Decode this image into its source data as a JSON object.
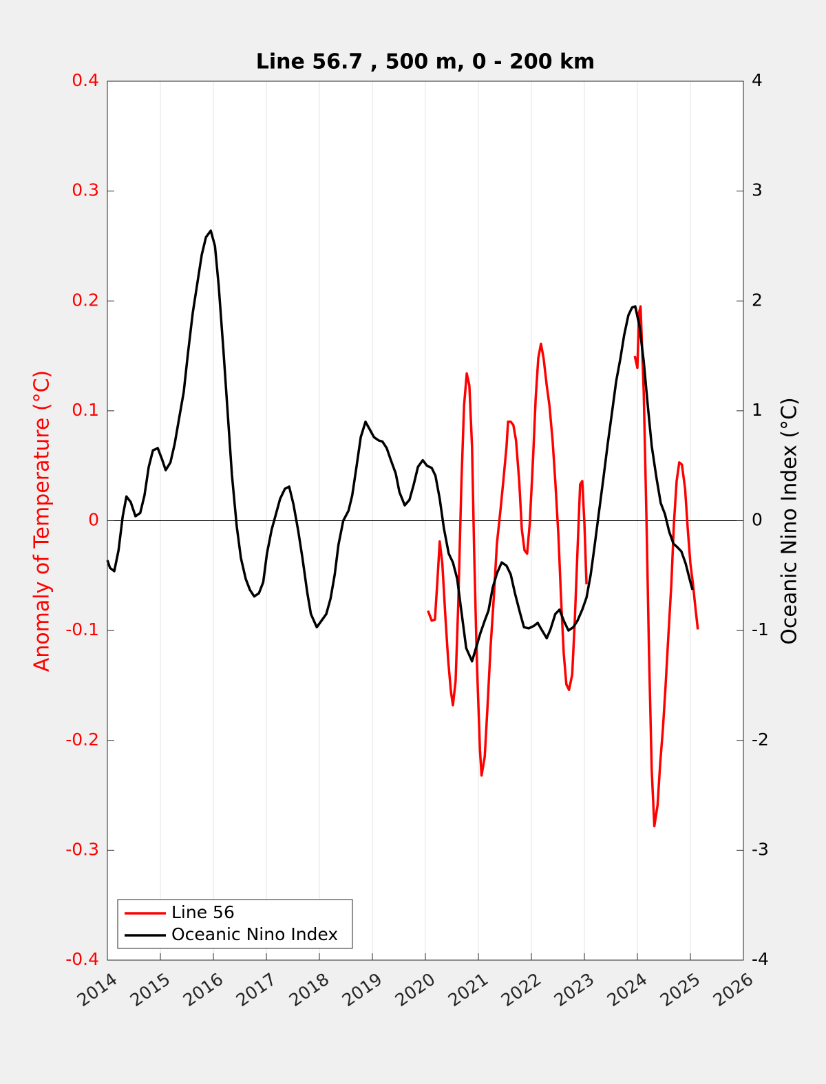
{
  "chart_data": {
    "type": "line",
    "title": "Line 56.7 , 500 m, 0 - 200 km",
    "y_label": "Anomaly of Temperature (°C)",
    "y2_label": "Oceanic Nino Index (°C)",
    "xlim": [
      2014,
      2026
    ],
    "xticks": [
      2014,
      2015,
      2016,
      2017,
      2018,
      2019,
      2020,
      2021,
      2022,
      2023,
      2024,
      2025,
      2026
    ],
    "ylim": [
      -0.4,
      0.4
    ],
    "yticks": [
      -0.4,
      -0.3,
      -0.2,
      -0.1,
      0,
      0.1,
      0.2,
      0.3,
      0.4
    ],
    "y2lim": [
      -4,
      4
    ],
    "y2ticks": [
      -4,
      -3,
      -2,
      -1,
      0,
      1,
      2,
      3,
      4
    ],
    "grid": true,
    "zero_line": true,
    "legend": "lower left",
    "y_color": "#ff0000",
    "y2_color": "#000000",
    "series": [
      {
        "name": "Line 56",
        "color": "#ff0000",
        "axis": "y",
        "x": [
          2020.05,
          2020.12,
          2020.18,
          2020.23,
          2020.27,
          2020.32,
          2020.38,
          2020.43,
          2020.48,
          2020.52,
          2020.57,
          2020.62,
          2020.68,
          2020.73,
          2020.78,
          2020.83,
          2020.88,
          2020.92,
          2020.97,
          2021.03,
          2021.06,
          2021.12,
          2021.17,
          2021.23,
          2021.29,
          2021.35,
          2021.42,
          2021.47,
          2021.53,
          2021.56,
          2021.61,
          2021.66,
          2021.71,
          2021.77,
          2021.82,
          2021.87,
          2021.92,
          2021.97,
          2022.03,
          2022.08,
          2022.13,
          2022.18,
          2022.23,
          2022.29,
          2022.34,
          2022.4,
          2022.45,
          2022.51,
          2022.56,
          2022.61,
          2022.66,
          2022.71,
          2022.77,
          2022.82,
          2022.87,
          2022.92,
          2022.96,
          2023.0,
          2023.04,
          2023.5,
          2023.95,
          2024.0,
          2024.03,
          2024.06,
          2024.12,
          2024.17,
          2024.22,
          2024.27,
          2024.32,
          2024.38,
          2024.43,
          2024.48,
          2024.53,
          2024.58,
          2024.64,
          2024.69,
          2024.74,
          2024.79,
          2024.84,
          2024.9,
          2024.95,
          2025.0,
          2025.05,
          2025.09,
          2025.14
        ],
        "values": [
          -0.082,
          -0.091,
          -0.09,
          -0.052,
          -0.019,
          -0.039,
          -0.09,
          -0.127,
          -0.155,
          -0.168,
          -0.146,
          -0.077,
          0.036,
          0.105,
          0.134,
          0.123,
          0.067,
          -0.027,
          -0.127,
          -0.209,
          -0.232,
          -0.215,
          -0.171,
          -0.115,
          -0.071,
          -0.021,
          0.011,
          0.036,
          0.067,
          0.09,
          0.09,
          0.087,
          0.073,
          0.036,
          -0.008,
          -0.027,
          -0.03,
          -0.002,
          0.055,
          0.111,
          0.148,
          0.161,
          0.148,
          0.123,
          0.105,
          0.073,
          0.036,
          -0.014,
          -0.071,
          -0.121,
          -0.149,
          -0.154,
          -0.14,
          -0.09,
          -0.027,
          0.033,
          0.036,
          -0.002,
          -0.058,
          null,
          0.15,
          0.139,
          0.189,
          0.195,
          0.117,
          0.004,
          -0.121,
          -0.227,
          -0.278,
          -0.259,
          -0.221,
          -0.19,
          -0.152,
          -0.108,
          -0.058,
          -0.002,
          0.036,
          0.053,
          0.051,
          0.029,
          -0.008,
          -0.039,
          -0.058,
          -0.077,
          -0.099
        ]
      },
      {
        "name": "Oceanic Nino Index",
        "color": "#000000",
        "axis": "y2",
        "x": [
          2014.0,
          2014.05,
          2014.13,
          2014.21,
          2014.29,
          2014.36,
          2014.44,
          2014.53,
          2014.62,
          2014.7,
          2014.78,
          2014.86,
          2014.95,
          2015.03,
          2015.1,
          2015.19,
          2015.27,
          2015.35,
          2015.44,
          2015.52,
          2015.61,
          2015.7,
          2015.78,
          2015.86,
          2015.95,
          2016.03,
          2016.1,
          2016.19,
          2016.27,
          2016.35,
          2016.44,
          2016.52,
          2016.61,
          2016.69,
          2016.77,
          2016.86,
          2016.94,
          2017.01,
          2017.1,
          2017.18,
          2017.26,
          2017.35,
          2017.43,
          2017.51,
          2017.6,
          2017.68,
          2017.77,
          2017.84,
          2017.95,
          2018.04,
          2018.13,
          2018.21,
          2018.29,
          2018.36,
          2018.45,
          2018.55,
          2018.62,
          2018.7,
          2018.78,
          2018.87,
          2018.95,
          2019.03,
          2019.12,
          2019.19,
          2019.27,
          2019.35,
          2019.44,
          2019.51,
          2019.61,
          2019.7,
          2019.78,
          2019.86,
          2019.95,
          2020.03,
          2020.12,
          2020.19,
          2020.27,
          2020.35,
          2020.44,
          2020.52,
          2020.6,
          2020.68,
          2020.77,
          2020.88,
          2020.96,
          2021.04,
          2021.12,
          2021.19,
          2021.27,
          2021.35,
          2021.44,
          2021.53,
          2021.61,
          2021.69,
          2021.78,
          2021.86,
          2021.95,
          2022.04,
          2022.12,
          2022.19,
          2022.29,
          2022.36,
          2022.45,
          2022.53,
          2022.62,
          2022.7,
          2022.79,
          2022.87,
          2022.96,
          2023.04,
          2023.12,
          2023.19,
          2023.27,
          2023.36,
          2023.44,
          2023.52,
          2023.6,
          2023.68,
          2023.75,
          2023.83,
          2023.9,
          2023.96,
          2024.04,
          2024.12,
          2024.19,
          2024.27,
          2024.36,
          2024.44,
          2024.52,
          2024.6,
          2024.68,
          2024.75,
          2024.83,
          2024.91,
          2024.99,
          2025.04
        ],
        "values": [
          -0.36,
          -0.43,
          -0.46,
          -0.27,
          0.04,
          0.22,
          0.17,
          0.04,
          0.07,
          0.23,
          0.49,
          0.64,
          0.66,
          0.56,
          0.46,
          0.53,
          0.7,
          0.92,
          1.17,
          1.52,
          1.89,
          2.17,
          2.42,
          2.58,
          2.64,
          2.5,
          2.14,
          1.55,
          0.98,
          0.42,
          -0.05,
          -0.34,
          -0.53,
          -0.63,
          -0.69,
          -0.66,
          -0.56,
          -0.3,
          -0.08,
          0.06,
          0.2,
          0.29,
          0.31,
          0.15,
          -0.09,
          -0.34,
          -0.65,
          -0.85,
          -0.97,
          -0.91,
          -0.85,
          -0.71,
          -0.49,
          -0.22,
          0.0,
          0.09,
          0.23,
          0.49,
          0.76,
          0.9,
          0.83,
          0.76,
          0.73,
          0.72,
          0.66,
          0.55,
          0.43,
          0.26,
          0.14,
          0.19,
          0.33,
          0.49,
          0.55,
          0.5,
          0.48,
          0.41,
          0.2,
          -0.07,
          -0.3,
          -0.38,
          -0.53,
          -0.83,
          -1.16,
          -1.28,
          -1.15,
          -1.02,
          -0.91,
          -0.82,
          -0.61,
          -0.48,
          -0.38,
          -0.41,
          -0.49,
          -0.66,
          -0.83,
          -0.97,
          -0.98,
          -0.96,
          -0.93,
          -0.99,
          -1.07,
          -0.99,
          -0.85,
          -0.81,
          -0.92,
          -1.0,
          -0.97,
          -0.91,
          -0.81,
          -0.7,
          -0.49,
          -0.24,
          0.06,
          0.39,
          0.7,
          0.98,
          1.27,
          1.48,
          1.69,
          1.87,
          1.94,
          1.95,
          1.77,
          1.45,
          1.08,
          0.68,
          0.39,
          0.16,
          0.06,
          -0.1,
          -0.21,
          -0.24,
          -0.28,
          -0.39,
          -0.54,
          -0.63
        ]
      }
    ]
  }
}
